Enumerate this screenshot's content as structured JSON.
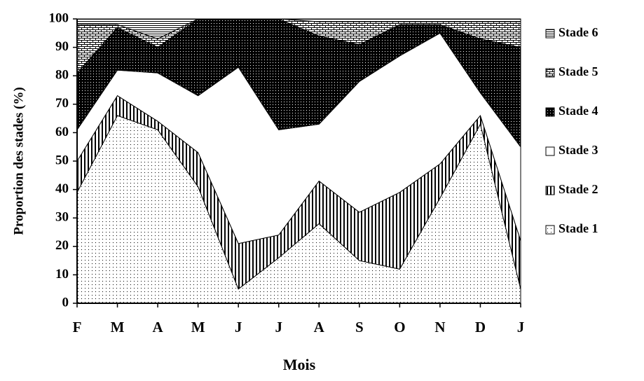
{
  "chart_data": {
    "type": "stacked-area",
    "y_label": "Proportion des stades (%)",
    "x_label": "Mois",
    "categories": [
      "F",
      "M",
      "A",
      "M",
      "J",
      "J",
      "A",
      "S",
      "O",
      "N",
      "D",
      "J"
    ],
    "ylim": [
      0,
      100
    ],
    "yticks": [
      0,
      10,
      20,
      30,
      40,
      50,
      60,
      70,
      80,
      90,
      100
    ],
    "series": [
      {
        "name": "Stade 1",
        "color": "#ffffff",
        "pattern": "dots",
        "values": [
          39,
          66,
          61,
          41,
          5,
          16,
          28,
          15,
          12,
          37,
          63,
          5
        ]
      },
      {
        "name": "Stade 2",
        "color": "#ffffff",
        "pattern": "vertical",
        "values": [
          11,
          7,
          3,
          12,
          16,
          8,
          15,
          17,
          27,
          12,
          3,
          17
        ]
      },
      {
        "name": "Stade 3",
        "color": "#ffffff",
        "pattern": "none",
        "values": [
          11,
          9,
          17,
          20,
          62,
          37,
          20,
          46,
          48,
          46,
          8,
          33
        ]
      },
      {
        "name": "Stade 4",
        "color": "#000000",
        "pattern": "darkdots",
        "values": [
          20,
          15,
          9,
          27,
          17,
          39,
          31,
          13,
          11,
          3,
          19,
          35
        ]
      },
      {
        "name": "Stade 5",
        "color": "#ffffff",
        "pattern": "brick",
        "values": [
          17,
          1,
          3,
          0,
          0,
          0,
          5,
          8,
          1,
          1,
          6,
          9
        ]
      },
      {
        "name": "Stade 6",
        "color": "#ffffff",
        "pattern": "horizontal",
        "values": [
          2,
          2,
          7,
          0,
          0,
          0,
          1,
          1,
          1,
          1,
          1,
          1
        ]
      }
    ]
  }
}
